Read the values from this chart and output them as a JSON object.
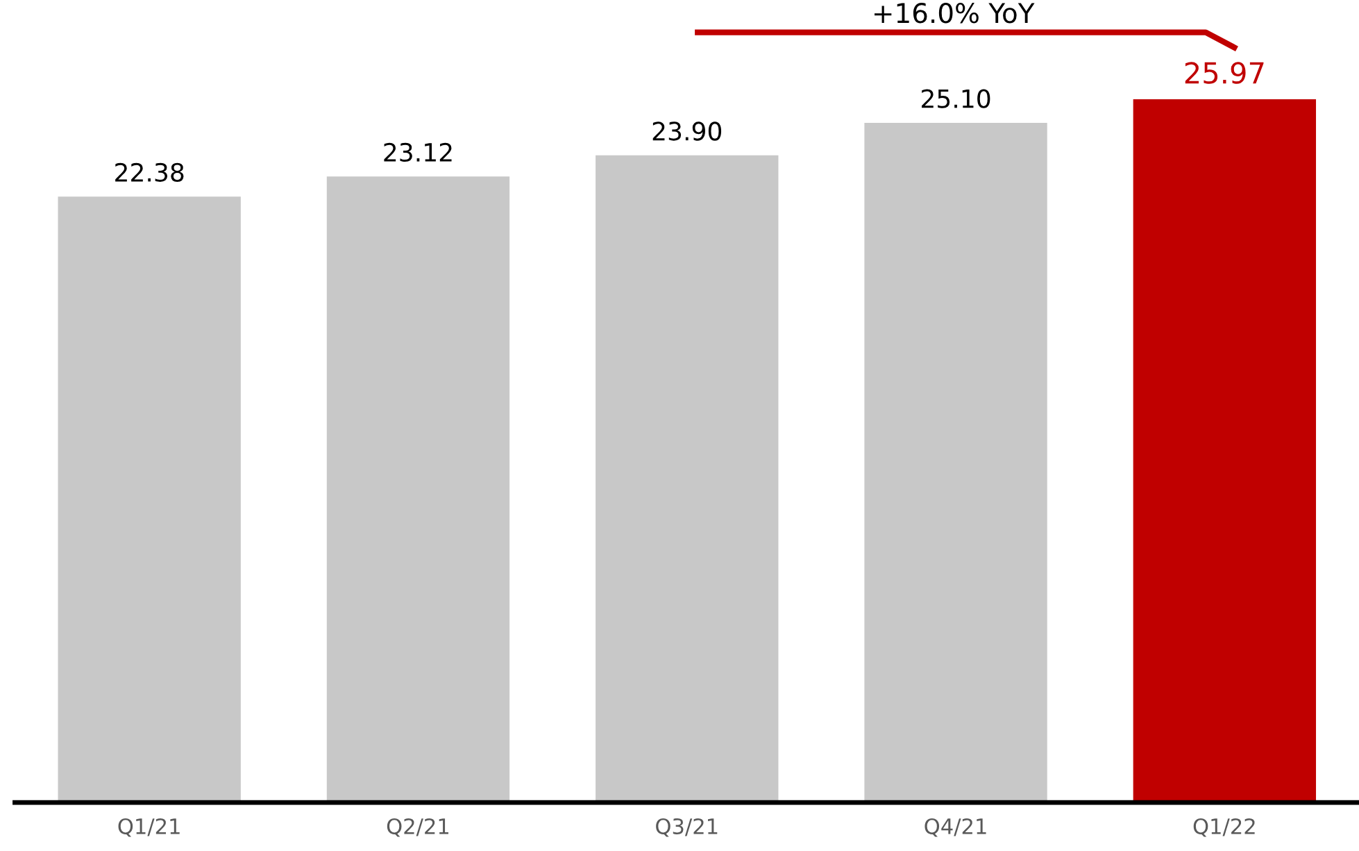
{
  "chart_data": {
    "type": "bar",
    "categories": [
      "Q1/21",
      "Q2/21",
      "Q3/21",
      "Q4/21",
      "Q1/22"
    ],
    "values": [
      22.38,
      23.12,
      23.9,
      25.1,
      25.97
    ],
    "colors": [
      "#c8c8c8",
      "#c8c8c8",
      "#c8c8c8",
      "#c8c8c8",
      "#c00000"
    ],
    "value_labels": [
      "22.38",
      "23.12",
      "23.90",
      "25.10",
      "25.97"
    ],
    "annotations": [
      "+16.0% YoY"
    ],
    "tick_labels": "x",
    "grid": false,
    "legend": false
  }
}
